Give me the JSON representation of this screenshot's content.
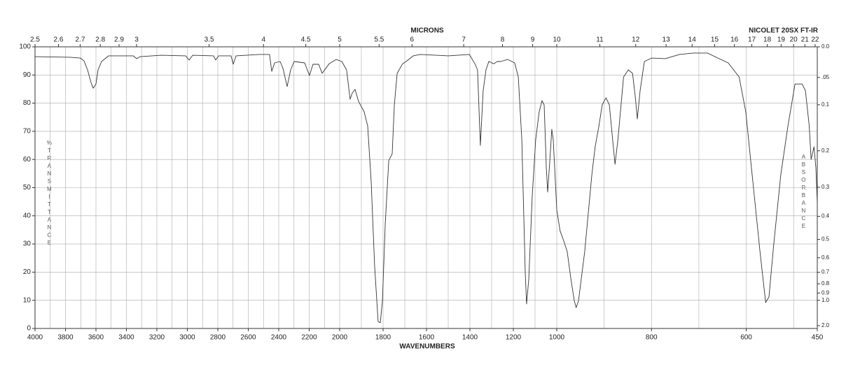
{
  "chart_data": {
    "type": "line",
    "title": "NICOLET 20SX FT-IR",
    "xlabel": "WAVENUMBERS",
    "x2label": "MICRONS",
    "ylabel": "%TRANSMITTANCE",
    "y2label": "ABSORBANCE",
    "xlim": [
      4000,
      450
    ],
    "x_scale_breaks": [
      2000,
      1000
    ],
    "xticks": [
      4000,
      3800,
      3600,
      3400,
      3200,
      3000,
      2800,
      2600,
      2400,
      2200,
      2000,
      1800,
      1600,
      1400,
      1200,
      1000,
      800,
      600,
      450
    ],
    "xgrid": [
      3900,
      3800,
      3700,
      3600,
      3500,
      3400,
      3300,
      3200,
      3100,
      3000,
      2900,
      2800,
      2700,
      2600,
      2500,
      2400,
      2300,
      2200,
      2100,
      2000,
      1900,
      1800,
      1700,
      1600,
      1500,
      1400,
      1300,
      1200,
      1100,
      1000,
      900,
      800,
      700,
      600,
      500
    ],
    "x2ticks": [
      2.5,
      2.6,
      2.7,
      2.8,
      2.9,
      3,
      3.5,
      4,
      4.5,
      5,
      5.5,
      6,
      7,
      8,
      9,
      10,
      11,
      12,
      13,
      14,
      15,
      16,
      17,
      18,
      19,
      20,
      21,
      22
    ],
    "ylim": [
      0,
      100
    ],
    "yticks": [
      0,
      10,
      20,
      30,
      40,
      50,
      60,
      70,
      80,
      90,
      100
    ],
    "y2ticks": [
      {
        "value": 0,
        "label": "0.0"
      },
      {
        "value": 0.05,
        "label": ".05"
      },
      0.1,
      0.2,
      0.3,
      0.4,
      0.5,
      0.6,
      0.7,
      0.8,
      0.9,
      {
        "value": 1,
        "label": "1.0"
      },
      {
        "value": 2,
        "label": "2.0"
      }
    ],
    "grid": true,
    "color": "#333333",
    "x": [
      4000,
      3770,
      3701,
      3678,
      3655,
      3632,
      3618,
      3600,
      3586,
      3563,
      3517,
      3356,
      3333,
      3310,
      3172,
      3011,
      2988,
      2965,
      2828,
      2814,
      2795,
      2713,
      2699,
      2680,
      2529,
      2460,
      2446,
      2427,
      2391,
      2372,
      2345,
      2322,
      2299,
      2230,
      2198,
      2175,
      2138,
      2115,
      2069,
      2023,
      1990,
      1968,
      1952,
      1942,
      1929,
      1913,
      1887,
      1871,
      1855,
      1839,
      1823,
      1813,
      1803,
      1790,
      1774,
      1758,
      1748,
      1735,
      1710,
      1694,
      1661,
      1629,
      1500,
      1403,
      1377,
      1365,
      1352,
      1339,
      1326,
      1313,
      1290,
      1274,
      1258,
      1226,
      1194,
      1177,
      1161,
      1145,
      1139,
      1129,
      1113,
      1097,
      1081,
      1068,
      1058,
      1048,
      1042,
      1032,
      1023,
      1016,
      1000,
      993,
      985,
      978,
      970,
      963,
      959,
      954,
      941,
      926,
      919,
      911,
      904,
      896,
      889,
      882,
      877,
      871,
      859,
      849,
      840,
      834,
      830,
      824,
      815,
      800,
      771,
      741,
      712,
      682,
      638,
      615,
      601,
      586,
      571,
      559,
      552,
      542,
      527,
      512,
      497,
      482,
      475,
      467,
      463,
      457,
      453,
      450
    ],
    "values": [
      96.5,
      96.3,
      96.0,
      95.0,
      91.8,
      87.3,
      85.3,
      86.8,
      91.8,
      94.8,
      96.8,
      96.8,
      95.8,
      96.5,
      97.0,
      96.8,
      95.3,
      97.0,
      96.8,
      95.3,
      96.8,
      96.8,
      93.8,
      96.8,
      97.3,
      97.3,
      91.3,
      94.3,
      94.8,
      92.3,
      85.9,
      91.8,
      94.8,
      94.3,
      89.8,
      93.8,
      93.8,
      90.6,
      94.0,
      95.5,
      94.8,
      91.8,
      81.4,
      83.6,
      84.9,
      80.6,
      76.9,
      71.9,
      52.1,
      22.3,
      2.5,
      2.0,
      9.9,
      37.2,
      59.6,
      62.0,
      79.4,
      90.6,
      94.0,
      94.8,
      96.8,
      97.3,
      96.8,
      97.3,
      94.0,
      91.8,
      65.0,
      84.4,
      91.8,
      94.8,
      94.0,
      94.8,
      94.8,
      95.5,
      94.3,
      89.3,
      67.0,
      19.9,
      8.7,
      17.4,
      47.1,
      67.0,
      76.9,
      80.9,
      79.4,
      57.1,
      48.4,
      59.6,
      70.7,
      67.0,
      42.2,
      34.7,
      31.0,
      27.3,
      17.4,
      9.9,
      7.4,
      9.9,
      27.3,
      54.6,
      64.5,
      71.9,
      79.4,
      81.9,
      79.4,
      67.0,
      58.3,
      67.0,
      89.3,
      91.8,
      90.6,
      81.9,
      74.4,
      84.4,
      94.8,
      96.0,
      95.8,
      97.3,
      97.8,
      97.8,
      94.3,
      89.3,
      76.9,
      52.1,
      27.3,
      9.2,
      11.2,
      29.8,
      54.6,
      71.9,
      86.8,
      86.8,
      84.4,
      71.9,
      60.0,
      64.5,
      57.1,
      44.7
    ]
  }
}
